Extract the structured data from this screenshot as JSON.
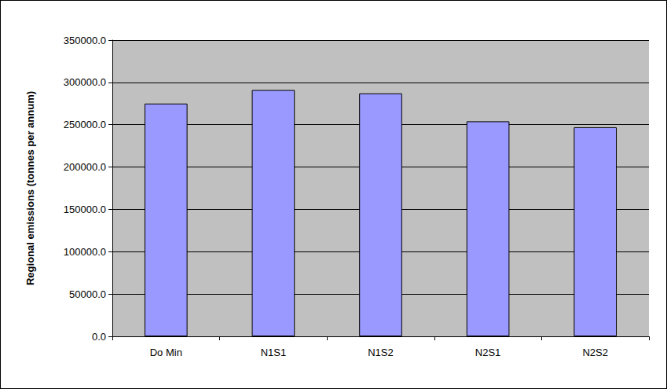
{
  "chart_data": {
    "type": "bar",
    "y_label": "Regional emissions (tonnes per annum)",
    "categories": [
      "Do Min",
      "N1S1",
      "N1S2",
      "N2S1",
      "N2S2"
    ],
    "values": [
      275000,
      291000,
      287000,
      254000,
      247000
    ],
    "color": "#9999ff",
    "ylim": [
      0,
      350000
    ],
    "yticks": [
      {
        "value": 0,
        "label": "0.0"
      },
      {
        "value": 50000,
        "label": "50000.0"
      },
      {
        "value": 100000,
        "label": "100000.0"
      },
      {
        "value": 150000,
        "label": "150000.0"
      },
      {
        "value": 200000,
        "label": "200000.0"
      },
      {
        "value": 250000,
        "label": "250000.0"
      },
      {
        "value": 300000,
        "label": "300000.0"
      },
      {
        "value": 350000,
        "label": "350000.0"
      }
    ],
    "grid": true
  }
}
